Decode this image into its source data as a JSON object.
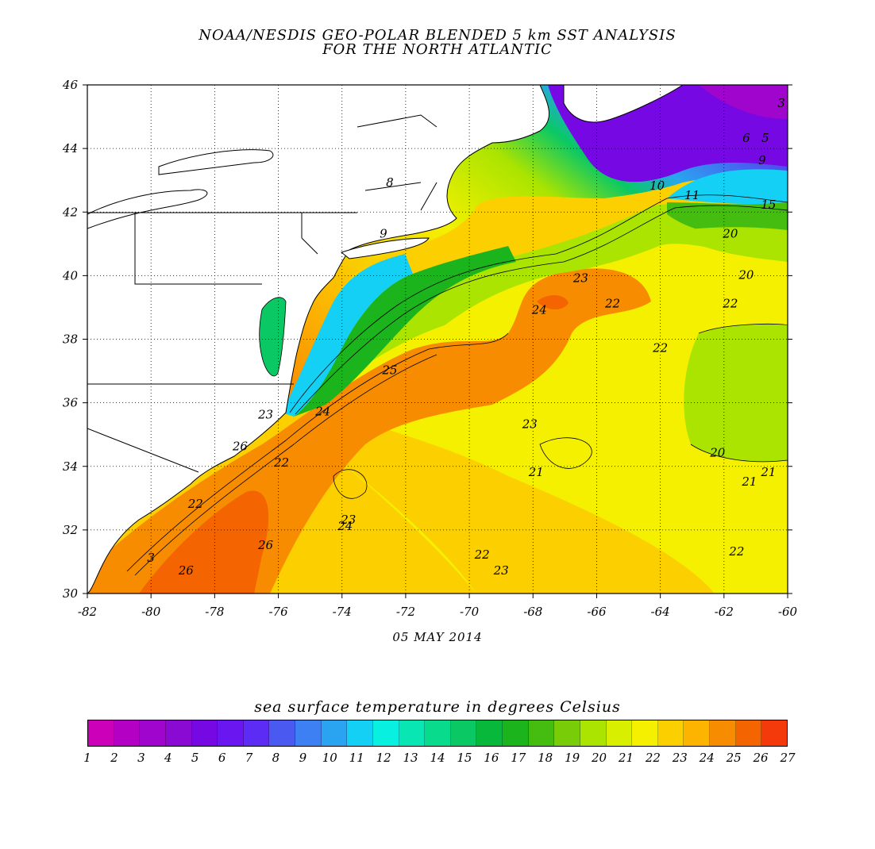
{
  "header": {
    "title_line1": "NOAA/NESDIS GEO-POLAR BLENDED 5 km SST ANALYSIS",
    "title_line2": "FOR THE NORTH ATLANTIC"
  },
  "map": {
    "lon_range": [
      -82,
      -60
    ],
    "lat_range": [
      30,
      46
    ],
    "x_ticks": [
      "-82",
      "-80",
      "-78",
      "-76",
      "-74",
      "-72",
      "-70",
      "-68",
      "-66",
      "-64",
      "-62",
      "-60"
    ],
    "y_ticks": [
      "46",
      "44",
      "42",
      "40",
      "38",
      "36",
      "34",
      "32",
      "30"
    ],
    "grid": "dotted",
    "date": "05 MAY 2014",
    "contour_labels": [
      {
        "text": "3",
        "lon": -60.2,
        "lat": 45.3
      },
      {
        "text": "6",
        "lon": -61.3,
        "lat": 44.2
      },
      {
        "text": "5",
        "lon": -60.7,
        "lat": 44.2
      },
      {
        "text": "9",
        "lon": -60.8,
        "lat": 43.5
      },
      {
        "text": "8",
        "lon": -72.5,
        "lat": 42.8
      },
      {
        "text": "9",
        "lon": -72.7,
        "lat": 41.2
      },
      {
        "text": "10",
        "lon": -64.1,
        "lat": 42.7
      },
      {
        "text": "11",
        "lon": -63.0,
        "lat": 42.4
      },
      {
        "text": "15",
        "lon": -60.6,
        "lat": 42.1
      },
      {
        "text": "20",
        "lon": -61.8,
        "lat": 41.2
      },
      {
        "text": "20",
        "lon": -61.3,
        "lat": 39.9
      },
      {
        "text": "23",
        "lon": -66.5,
        "lat": 39.8
      },
      {
        "text": "22",
        "lon": -65.5,
        "lat": 39.0
      },
      {
        "text": "22",
        "lon": -61.8,
        "lat": 39.0
      },
      {
        "text": "24",
        "lon": -67.8,
        "lat": 38.8
      },
      {
        "text": "22",
        "lon": -64.0,
        "lat": 37.6
      },
      {
        "text": "25",
        "lon": -72.5,
        "lat": 36.9
      },
      {
        "text": "23",
        "lon": -68.1,
        "lat": 35.2
      },
      {
        "text": "23",
        "lon": -76.4,
        "lat": 35.5
      },
      {
        "text": "24",
        "lon": -74.6,
        "lat": 35.6
      },
      {
        "text": "26",
        "lon": -77.2,
        "lat": 34.5
      },
      {
        "text": "22",
        "lon": -75.9,
        "lat": 34.0
      },
      {
        "text": "21",
        "lon": -67.9,
        "lat": 33.7
      },
      {
        "text": "20",
        "lon": -62.2,
        "lat": 34.3
      },
      {
        "text": "21",
        "lon": -60.6,
        "lat": 33.7
      },
      {
        "text": "21",
        "lon": -61.2,
        "lat": 33.4
      },
      {
        "text": "22",
        "lon": -78.6,
        "lat": 32.7
      },
      {
        "text": "23",
        "lon": -73.8,
        "lat": 32.2
      },
      {
        "text": "24",
        "lon": -73.9,
        "lat": 32.0
      },
      {
        "text": "26",
        "lon": -76.4,
        "lat": 31.4
      },
      {
        "text": "22",
        "lon": -69.6,
        "lat": 31.1
      },
      {
        "text": "22",
        "lon": -61.6,
        "lat": 31.2
      },
      {
        "text": "23",
        "lon": -69.0,
        "lat": 30.6
      },
      {
        "text": "3",
        "lon": -80.0,
        "lat": 31.0
      },
      {
        "text": "26",
        "lon": -78.9,
        "lat": 30.6
      }
    ]
  },
  "colorbar": {
    "title": "sea surface temperature in degrees Celsius",
    "labels": [
      "1",
      "2",
      "3",
      "4",
      "5",
      "6",
      "7",
      "8",
      "9",
      "10",
      "11",
      "12",
      "13",
      "14",
      "15",
      "16",
      "17",
      "18",
      "19",
      "20",
      "21",
      "22",
      "23",
      "24",
      "25",
      "26",
      "27"
    ],
    "colors": [
      "#cc00b8",
      "#b400c4",
      "#9f05cc",
      "#8a0ad4",
      "#7608e4",
      "#6a16f0",
      "#5c2cf4",
      "#4a5af0",
      "#3c80f4",
      "#2aa4f0",
      "#14d0f4",
      "#08f0e0",
      "#08e6b4",
      "#08dc8c",
      "#0ac864",
      "#08b83a",
      "#1cb41c",
      "#44bc10",
      "#78cc08",
      "#aae400",
      "#d8f000",
      "#f4f000",
      "#fcd000",
      "#fcb400",
      "#f88c00",
      "#f46400",
      "#f43a0a"
    ]
  }
}
